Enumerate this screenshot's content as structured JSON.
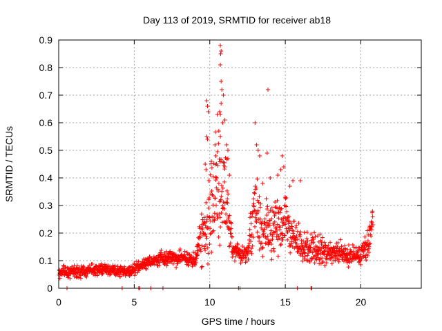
{
  "chart_data": {
    "type": "scatter",
    "title": "Day 113 of 2019, SRMTID for receiver ab18",
    "xlabel": "GPS time / hours",
    "ylabel": "SRMTID / TECUs",
    "xlim": [
      0,
      24
    ],
    "ylim": [
      0,
      0.9
    ],
    "xticks": [
      0,
      5,
      10,
      15,
      20
    ],
    "yticks": [
      0,
      0.1,
      0.2,
      0.3,
      0.4,
      0.5,
      0.6,
      0.7,
      0.8,
      0.9
    ],
    "xtick_labels": [
      "0",
      "5",
      "10",
      "15",
      "20"
    ],
    "ytick_labels": [
      "0",
      "0.1",
      "0.2",
      "0.3",
      "0.4",
      "0.5",
      "0.6",
      "0.7",
      "0.8",
      "0.9"
    ],
    "grid": true,
    "series": [
      {
        "name": "SRMTID",
        "color": "#ff0000",
        "marker": "plus",
        "profile": [
          [
            0.0,
            0.06,
            0.03
          ],
          [
            1.0,
            0.06,
            0.03
          ],
          [
            2.0,
            0.065,
            0.03
          ],
          [
            3.0,
            0.07,
            0.03
          ],
          [
            4.0,
            0.06,
            0.03
          ],
          [
            5.0,
            0.07,
            0.03
          ],
          [
            6.0,
            0.095,
            0.03
          ],
          [
            7.0,
            0.11,
            0.04
          ],
          [
            8.0,
            0.11,
            0.04
          ],
          [
            9.0,
            0.1,
            0.04
          ],
          [
            9.5,
            0.2,
            0.15
          ],
          [
            10.0,
            0.25,
            0.2
          ],
          [
            10.5,
            0.4,
            0.3
          ],
          [
            11.0,
            0.35,
            0.25
          ],
          [
            11.5,
            0.15,
            0.05
          ],
          [
            12.0,
            0.12,
            0.04
          ],
          [
            12.5,
            0.12,
            0.05
          ],
          [
            13.0,
            0.3,
            0.2
          ],
          [
            13.5,
            0.2,
            0.1
          ],
          [
            14.0,
            0.22,
            0.15
          ],
          [
            15.0,
            0.25,
            0.15
          ],
          [
            15.5,
            0.2,
            0.1
          ],
          [
            16.0,
            0.15,
            0.08
          ],
          [
            17.0,
            0.15,
            0.08
          ],
          [
            18.0,
            0.13,
            0.06
          ],
          [
            19.0,
            0.12,
            0.05
          ],
          [
            20.0,
            0.12,
            0.05
          ],
          [
            20.5,
            0.15,
            0.08
          ],
          [
            20.8,
            0.25,
            0.08
          ]
        ],
        "extremes": [
          [
            10.7,
            0.88
          ],
          [
            10.75,
            0.86
          ],
          [
            10.72,
            0.85
          ],
          [
            10.7,
            0.81
          ],
          [
            10.75,
            0.75
          ],
          [
            10.8,
            0.72
          ],
          [
            10.9,
            0.7
          ],
          [
            10.75,
            0.67
          ],
          [
            10.7,
            0.63
          ],
          [
            10.65,
            0.64
          ],
          [
            9.8,
            0.68
          ],
          [
            9.85,
            0.66
          ],
          [
            9.9,
            0.64
          ],
          [
            10.5,
            0.63
          ],
          [
            10.85,
            0.6
          ],
          [
            11.0,
            0.61
          ],
          [
            9.8,
            0.55
          ],
          [
            9.85,
            0.54
          ],
          [
            10.6,
            0.57
          ],
          [
            10.7,
            0.55
          ],
          [
            11.1,
            0.52
          ],
          [
            11.2,
            0.5
          ],
          [
            11.2,
            0.47
          ],
          [
            10.35,
            0.52
          ],
          [
            10.4,
            0.48
          ],
          [
            13.0,
            0.6
          ],
          [
            13.1,
            0.52
          ],
          [
            13.2,
            0.5
          ],
          [
            13.3,
            0.48
          ],
          [
            13.85,
            0.72
          ],
          [
            13.8,
            0.49
          ],
          [
            14.8,
            0.48
          ],
          [
            14.7,
            0.43
          ],
          [
            14.5,
            0.41
          ],
          [
            14.9,
            0.44
          ],
          [
            15.5,
            0.39
          ],
          [
            16.0,
            0.39
          ],
          [
            15.3,
            0.37
          ],
          [
            14.0,
            0.4
          ],
          [
            13.5,
            0.38
          ],
          [
            9.7,
            0.45
          ],
          [
            9.75,
            0.43
          ],
          [
            10.1,
            0.46
          ],
          [
            11.0,
            0.44
          ],
          [
            11.3,
            0.41
          ]
        ],
        "zero_points": [
          0.55,
          4.2,
          5.3,
          5.35,
          6.1,
          6.9,
          11.9,
          12.0,
          15.8,
          16.7,
          16.75
        ]
      }
    ]
  }
}
